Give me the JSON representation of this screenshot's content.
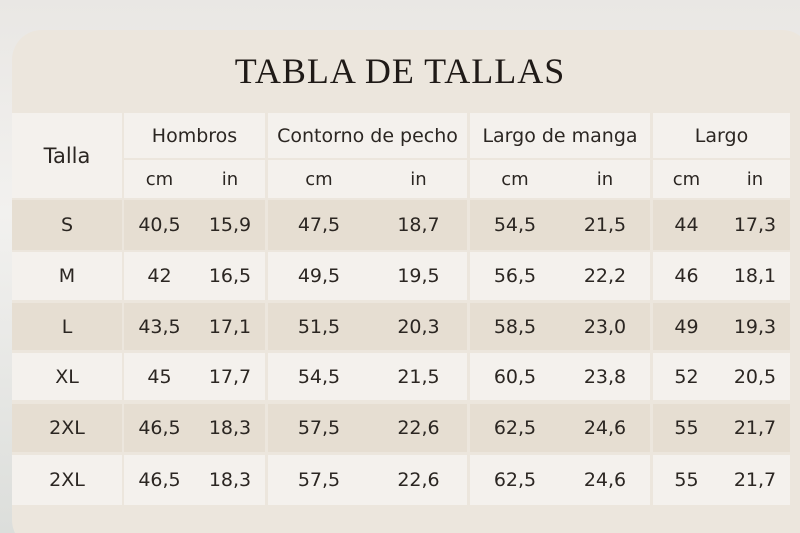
{
  "header": {
    "title": "TABLA DE TALLAS"
  },
  "table": {
    "columns": [
      "Talla",
      "Hombros",
      "Contorno de pecho",
      "Largo de manga",
      "Largo"
    ],
    "units": [
      "cm",
      "in",
      "cm",
      "in",
      "cm",
      "in",
      "cm",
      "in"
    ],
    "rows": [
      [
        "S",
        "40,5",
        "15,9",
        "47,5",
        "18,7",
        "54,5",
        "21,5",
        "44",
        "17,3"
      ],
      [
        "M",
        "42",
        "16,5",
        "49,5",
        "19,5",
        "56,5",
        "22,2",
        "46",
        "18,1"
      ],
      [
        "L",
        "43,5",
        "17,1",
        "51,5",
        "20,3",
        "58,5",
        "23,0",
        "49",
        "19,3"
      ],
      [
        "XL",
        "45",
        "17,7",
        "54,5",
        "21,5",
        "60,5",
        "23,8",
        "52",
        "20,5"
      ],
      [
        "2XL",
        "46,5",
        "18,3",
        "57,5",
        "22,6",
        "62,5",
        "24,6",
        "55",
        "21,7"
      ],
      [
        "2XL",
        "46,5",
        "18,3",
        "57,5",
        "22,6",
        "62,5",
        "24,6",
        "55",
        "21,7"
      ]
    ]
  }
}
